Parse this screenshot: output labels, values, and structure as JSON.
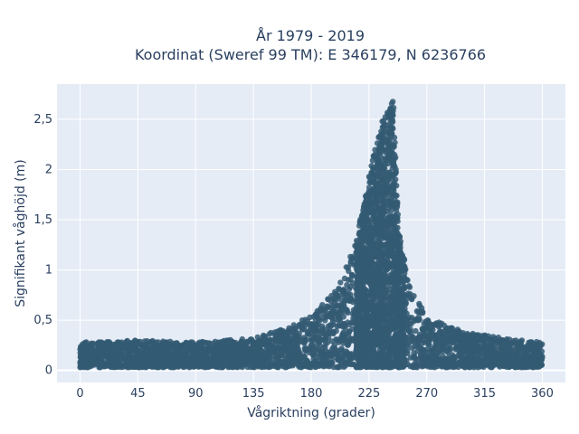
{
  "chart_data": {
    "type": "scatter",
    "title_lines": [
      "År 1979 - 2019",
      "Koordinat (Sweref 99 TM): E 346179, N 6236766"
    ],
    "xlabel": "Vågriktning (grader)",
    "ylabel": "Signifikant våghöjd (m)",
    "xlim": [
      -18,
      378
    ],
    "ylim": [
      -0.12,
      2.85
    ],
    "xticks": [
      0,
      45,
      90,
      135,
      180,
      225,
      270,
      315,
      360
    ],
    "xtick_labels": [
      "0",
      "45",
      "90",
      "135",
      "180",
      "225",
      "270",
      "315",
      "360"
    ],
    "yticks": [
      0,
      0.5,
      1,
      1.5,
      2,
      2.5
    ],
    "ytick_labels": [
      "0",
      "0,5",
      "1",
      "1,5",
      "2",
      "2,5"
    ],
    "grid": true,
    "colors": {
      "marker": "#345b73",
      "plot_bg": "#e5ecf6",
      "grid": "#ffffff"
    },
    "series": [
      {
        "envelope": [
          {
            "x": 0,
            "upper": 0.28
          },
          {
            "x": 45,
            "upper": 0.3
          },
          {
            "x": 90,
            "upper": 0.28
          },
          {
            "x": 135,
            "upper": 0.32
          },
          {
            "x": 160,
            "upper": 0.42
          },
          {
            "x": 180,
            "upper": 0.55
          },
          {
            "x": 195,
            "upper": 0.75
          },
          {
            "x": 205,
            "upper": 0.95
          },
          {
            "x": 215,
            "upper": 1.3
          },
          {
            "x": 222,
            "upper": 1.75
          },
          {
            "x": 228,
            "upper": 2.1
          },
          {
            "x": 234,
            "upper": 2.45
          },
          {
            "x": 240,
            "upper": 2.6
          },
          {
            "x": 244,
            "upper": 2.72
          },
          {
            "x": 248,
            "upper": 1.4
          },
          {
            "x": 255,
            "upper": 0.95
          },
          {
            "x": 262,
            "upper": 0.7
          },
          {
            "x": 275,
            "upper": 0.5
          },
          {
            "x": 300,
            "upper": 0.38
          },
          {
            "x": 330,
            "upper": 0.32
          },
          {
            "x": 360,
            "upper": 0.28
          }
        ],
        "lower": 0.03
      }
    ]
  }
}
